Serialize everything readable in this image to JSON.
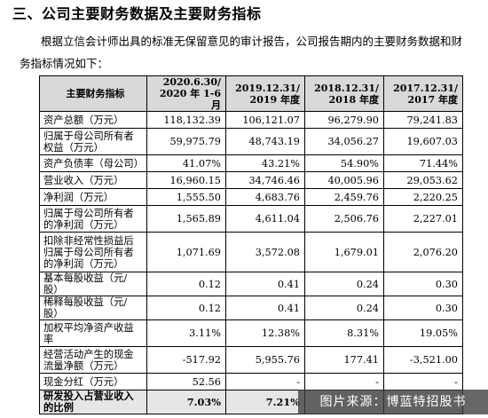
{
  "heading": "三、公司主要财务数据及主要财务指标",
  "paragraph": "根据立信会计师出具的标准无保留意见的审计报告，公司报告期内的主要财务数据和财务指标情况如下：",
  "table": {
    "header_label": "主要财务指标",
    "columns": [
      [
        "2020.6.30/",
        "2020 年 1-6 月"
      ],
      [
        "2019.12.31/",
        "2019 年度"
      ],
      [
        "2018.12.31/",
        "2018 年度"
      ],
      [
        "2017.12.31/",
        "2017 年度"
      ]
    ],
    "rows": [
      {
        "label": "资产总额（万元）",
        "values": [
          "118,132.39",
          "106,121.07",
          "96,279.90",
          "79,241.83"
        ]
      },
      {
        "label": "归属于母公司所有者权益（万元）",
        "values": [
          "59,975.79",
          "48,743.19",
          "34,056.27",
          "19,607.03"
        ]
      },
      {
        "label": "资产负债率（母公司）",
        "values": [
          "41.07%",
          "43.21%",
          "54.90%",
          "71.44%"
        ]
      },
      {
        "label": "营业收入（万元）",
        "values": [
          "16,960.15",
          "34,746.46",
          "40,005.96",
          "29,053.62"
        ]
      },
      {
        "label": "净利润（万元）",
        "values": [
          "1,555.50",
          "4,683.76",
          "2,459.76",
          "2,220.25"
        ]
      },
      {
        "label": "归属于母公司所有者的净利润（万元）",
        "values": [
          "1,565.89",
          "4,611.04",
          "2,506.76",
          "2,227.01"
        ]
      },
      {
        "label": "扣除非经常性损益后归属于母公司所有者的净利润（万元）",
        "values": [
          "1,071.69",
          "3,572.08",
          "1,679.01",
          "2,076.20"
        ]
      },
      {
        "label": "基本每股收益（元/股）",
        "values": [
          "0.12",
          "0.41",
          "0.24",
          "0.30"
        ]
      },
      {
        "label": "稀释每股收益（元/股）",
        "values": [
          "0.12",
          "0.41",
          "0.24",
          "0.30"
        ]
      },
      {
        "label": "加权平均净资产收益率",
        "values": [
          "3.11%",
          "12.38%",
          "8.31%",
          "19.05%"
        ]
      },
      {
        "label": "经营活动产生的现金流量净额（万元）",
        "values": [
          "-517.92",
          "5,955.76",
          "177.41",
          "-3,521.00"
        ]
      },
      {
        "label": "现金分红（万元）",
        "values": [
          "52.56",
          "-",
          "-",
          "-"
        ]
      },
      {
        "label": "研发投入占营业收入的比例",
        "values": [
          "7.03%",
          "7.21%",
          "",
          ""
        ]
      }
    ]
  },
  "watermark": "图片来源：博蓝特招股书"
}
